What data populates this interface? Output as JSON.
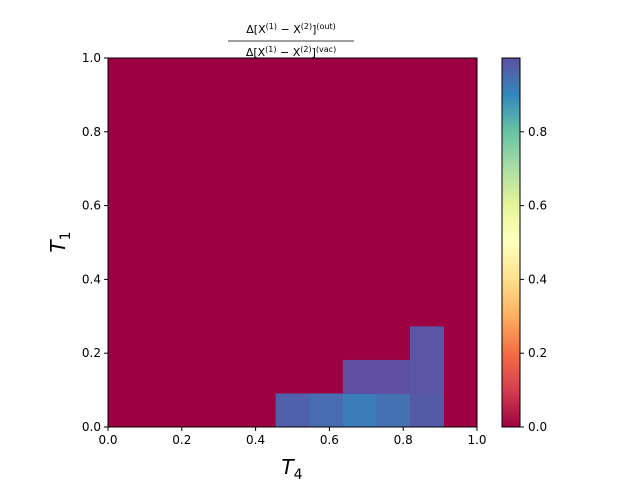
{
  "chart_data": {
    "type": "heatmap",
    "title": {
      "numerator_main": "Δ[X",
      "numerator_sup1": "(1)",
      "numerator_mid": " − X",
      "numerator_sup2": "(2)",
      "numerator_close": "]",
      "numerator_sup3": "(out)",
      "denominator_main": "Δ[X",
      "denominator_sup1": "(1)",
      "denominator_mid": " − X",
      "denominator_sup2": "(2)",
      "denominator_close": "]",
      "denominator_sup3": "(vac)"
    },
    "xlabel": {
      "base": "T",
      "sub": "4"
    },
    "ylabel": {
      "base": "T",
      "sub": "1"
    },
    "xlim": [
      0,
      1
    ],
    "ylim": [
      0,
      1
    ],
    "x_ticks": [
      "0.0",
      "0.2",
      "0.4",
      "0.6",
      "0.8",
      "1.0"
    ],
    "y_ticks": [
      "0.0",
      "0.2",
      "0.4",
      "0.6",
      "0.8",
      "1.0"
    ],
    "colorbar": {
      "colormap": "Spectral",
      "range": [
        0,
        1
      ],
      "ticks": [
        "0.0",
        "0.2",
        "0.4",
        "0.6",
        "0.8"
      ]
    },
    "grid_size": 11,
    "background_value": 0,
    "cells": [
      {
        "x": [
          0.4545,
          0.5455
        ],
        "y": [
          0,
          0.0909
        ],
        "value": 0.97
      },
      {
        "x": [
          0.5455,
          0.6364
        ],
        "y": [
          0,
          0.0909
        ],
        "value": 0.95
      },
      {
        "x": [
          0.6364,
          0.7273
        ],
        "y": [
          0,
          0.0909
        ],
        "value": 0.92
      },
      {
        "x": [
          0.7273,
          0.8182
        ],
        "y": [
          0,
          0.0909
        ],
        "value": 0.94
      },
      {
        "x": [
          0.8182,
          0.9091
        ],
        "y": [
          0,
          0.0909
        ],
        "value": 0.98
      },
      {
        "x": [
          0.6364,
          0.7273
        ],
        "y": [
          0.0909,
          0.1818
        ],
        "value": 1.0
      },
      {
        "x": [
          0.7273,
          0.8182
        ],
        "y": [
          0.0909,
          0.1818
        ],
        "value": 1.0
      },
      {
        "x": [
          0.8182,
          0.9091
        ],
        "y": [
          0.0909,
          0.1818
        ],
        "value": 0.99
      },
      {
        "x": [
          0.8182,
          0.9091
        ],
        "y": [
          0.1818,
          0.2727
        ],
        "value": 0.99
      }
    ]
  }
}
